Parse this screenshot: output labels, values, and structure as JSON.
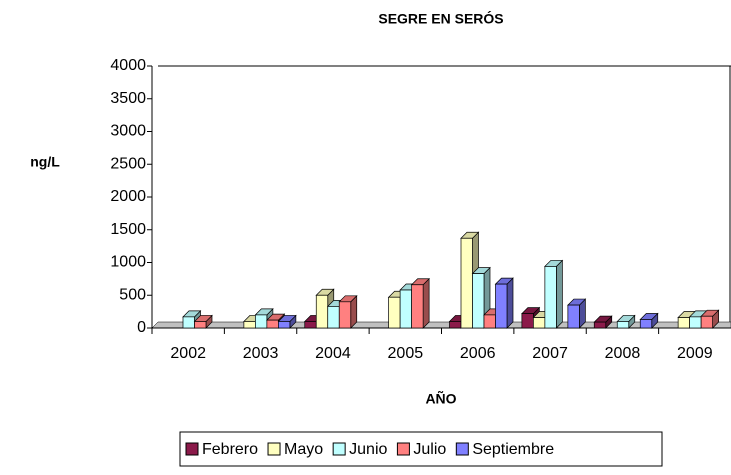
{
  "chart_data": {
    "type": "bar3d",
    "title": "SEGRE EN SERÓS",
    "y_label": "ng/L",
    "x_label": "AÑO",
    "categories": [
      "2002",
      "2003",
      "2004",
      "2005",
      "2006",
      "2007",
      "2008",
      "2009"
    ],
    "series": [
      {
        "name": "Febrero",
        "color": "#8b1a4a",
        "values": [
          null,
          null,
          100,
          null,
          100,
          220,
          90,
          null
        ]
      },
      {
        "name": "Mayo",
        "color": "#ffffc0",
        "values": [
          null,
          100,
          500,
          470,
          1370,
          160,
          null,
          160
        ]
      },
      {
        "name": "Junio",
        "color": "#c0ffff",
        "values": [
          170,
          200,
          330,
          580,
          830,
          940,
          100,
          170
        ]
      },
      {
        "name": "Julio",
        "color": "#ff8080",
        "values": [
          100,
          120,
          400,
          660,
          200,
          null,
          null,
          180
        ]
      },
      {
        "name": "Septiembre",
        "color": "#8080ff",
        "values": [
          null,
          100,
          null,
          null,
          670,
          350,
          130,
          null
        ]
      }
    ],
    "ylim": [
      0,
      4000
    ],
    "yticks": [
      0,
      500,
      1000,
      1500,
      2000,
      2500,
      3000,
      3500,
      4000
    ],
    "legend": "bottom"
  }
}
